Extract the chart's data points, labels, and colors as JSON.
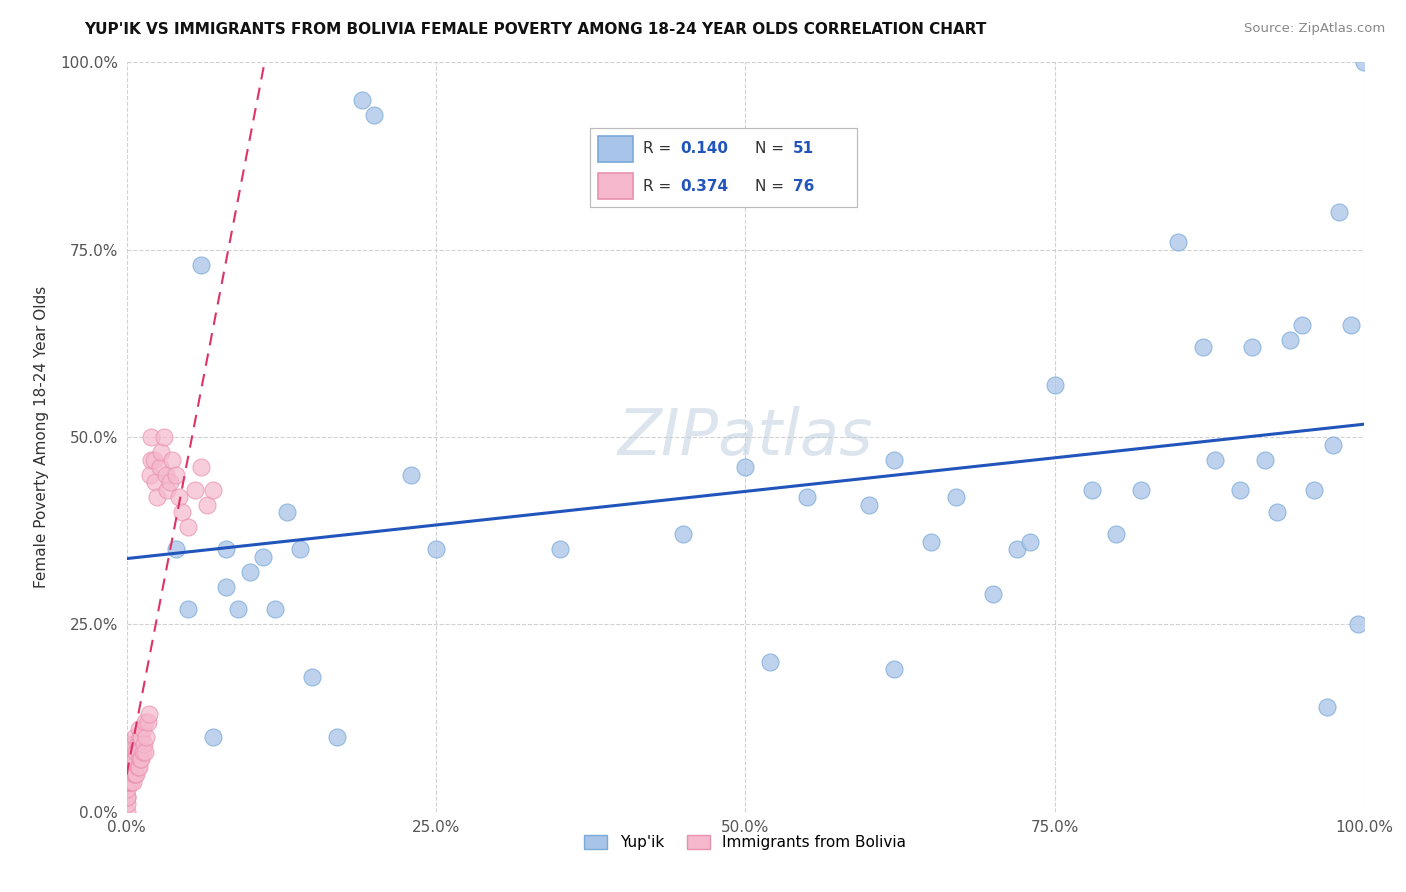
{
  "title": "YUP'IK VS IMMIGRANTS FROM BOLIVIA FEMALE POVERTY AMONG 18-24 YEAR OLDS CORRELATION CHART",
  "source": "Source: ZipAtlas.com",
  "ylabel": "Female Poverty Among 18-24 Year Olds",
  "xlim": [
    0,
    1.0
  ],
  "ylim": [
    0,
    1.0
  ],
  "xtick_labels": [
    "0.0%",
    "25.0%",
    "50.0%",
    "75.0%",
    "100.0%"
  ],
  "xtick_vals": [
    0.0,
    0.25,
    0.5,
    0.75,
    1.0
  ],
  "ytick_labels": [
    "0.0%",
    "25.0%",
    "50.0%",
    "75.0%",
    "100.0%"
  ],
  "ytick_vals": [
    0.0,
    0.25,
    0.5,
    0.75,
    1.0
  ],
  "yup_color": "#a8c4e8",
  "yup_edge": "#7aaad8",
  "bolivia_color": "#f5b8cc",
  "bolivia_edge": "#e890b0",
  "trend_yup_color": "#2255bb",
  "trend_bolivia_color": "#dd3366",
  "legend_r_yup": "0.140",
  "legend_n_yup": "51",
  "legend_r_bol": "0.374",
  "legend_n_bol": "76",
  "watermark": "ZIPatlas",
  "yup_x": [
    0.04,
    0.05,
    0.06,
    0.07,
    0.08,
    0.09,
    0.1,
    0.11,
    0.12,
    0.13,
    0.14,
    0.15,
    0.17,
    0.2,
    0.25,
    0.35,
    0.45,
    0.5,
    0.52,
    0.55,
    0.6,
    0.62,
    0.65,
    0.67,
    0.7,
    0.72,
    0.73,
    0.75,
    0.78,
    0.8,
    0.82,
    0.85,
    0.87,
    0.88,
    0.9,
    0.91,
    0.92,
    0.93,
    0.94,
    0.95,
    0.96,
    0.97,
    0.975,
    0.98,
    0.99,
    0.995,
    1.0,
    0.08,
    0.19,
    0.23,
    0.62
  ],
  "yup_y": [
    0.35,
    0.27,
    0.73,
    0.1,
    0.3,
    0.27,
    0.32,
    0.34,
    0.27,
    0.4,
    0.35,
    0.18,
    0.1,
    0.93,
    0.35,
    0.35,
    0.37,
    0.46,
    0.2,
    0.42,
    0.41,
    0.19,
    0.36,
    0.42,
    0.29,
    0.35,
    0.36,
    0.57,
    0.43,
    0.37,
    0.43,
    0.76,
    0.62,
    0.47,
    0.43,
    0.62,
    0.47,
    0.4,
    0.63,
    0.65,
    0.43,
    0.14,
    0.49,
    0.8,
    0.65,
    0.25,
    1.0,
    0.35,
    0.95,
    0.45,
    0.47
  ],
  "bol_x": [
    0.0,
    0.0,
    0.0,
    0.0,
    0.0,
    0.0,
    0.0,
    0.0,
    0.0,
    0.0,
    0.0,
    0.0,
    0.001,
    0.001,
    0.001,
    0.001,
    0.001,
    0.002,
    0.002,
    0.002,
    0.002,
    0.003,
    0.003,
    0.003,
    0.004,
    0.004,
    0.004,
    0.005,
    0.005,
    0.005,
    0.006,
    0.006,
    0.006,
    0.007,
    0.007,
    0.007,
    0.008,
    0.008,
    0.009,
    0.009,
    0.01,
    0.01,
    0.01,
    0.011,
    0.011,
    0.012,
    0.012,
    0.013,
    0.013,
    0.014,
    0.015,
    0.015,
    0.016,
    0.017,
    0.018,
    0.019,
    0.02,
    0.02,
    0.022,
    0.023,
    0.025,
    0.027,
    0.028,
    0.03,
    0.032,
    0.033,
    0.035,
    0.037,
    0.04,
    0.042,
    0.045,
    0.05,
    0.055,
    0.06,
    0.065,
    0.07
  ],
  "bol_y": [
    0.0,
    0.01,
    0.02,
    0.02,
    0.03,
    0.04,
    0.04,
    0.05,
    0.06,
    0.07,
    0.08,
    0.09,
    0.05,
    0.06,
    0.07,
    0.08,
    0.09,
    0.04,
    0.05,
    0.06,
    0.07,
    0.04,
    0.05,
    0.07,
    0.04,
    0.06,
    0.08,
    0.04,
    0.06,
    0.08,
    0.05,
    0.07,
    0.09,
    0.05,
    0.07,
    0.1,
    0.05,
    0.08,
    0.06,
    0.09,
    0.06,
    0.08,
    0.11,
    0.07,
    0.1,
    0.07,
    0.1,
    0.08,
    0.11,
    0.09,
    0.08,
    0.12,
    0.1,
    0.12,
    0.13,
    0.45,
    0.47,
    0.5,
    0.47,
    0.44,
    0.42,
    0.46,
    0.48,
    0.5,
    0.45,
    0.43,
    0.44,
    0.47,
    0.45,
    0.42,
    0.4,
    0.38,
    0.43,
    0.46,
    0.41,
    0.43
  ]
}
